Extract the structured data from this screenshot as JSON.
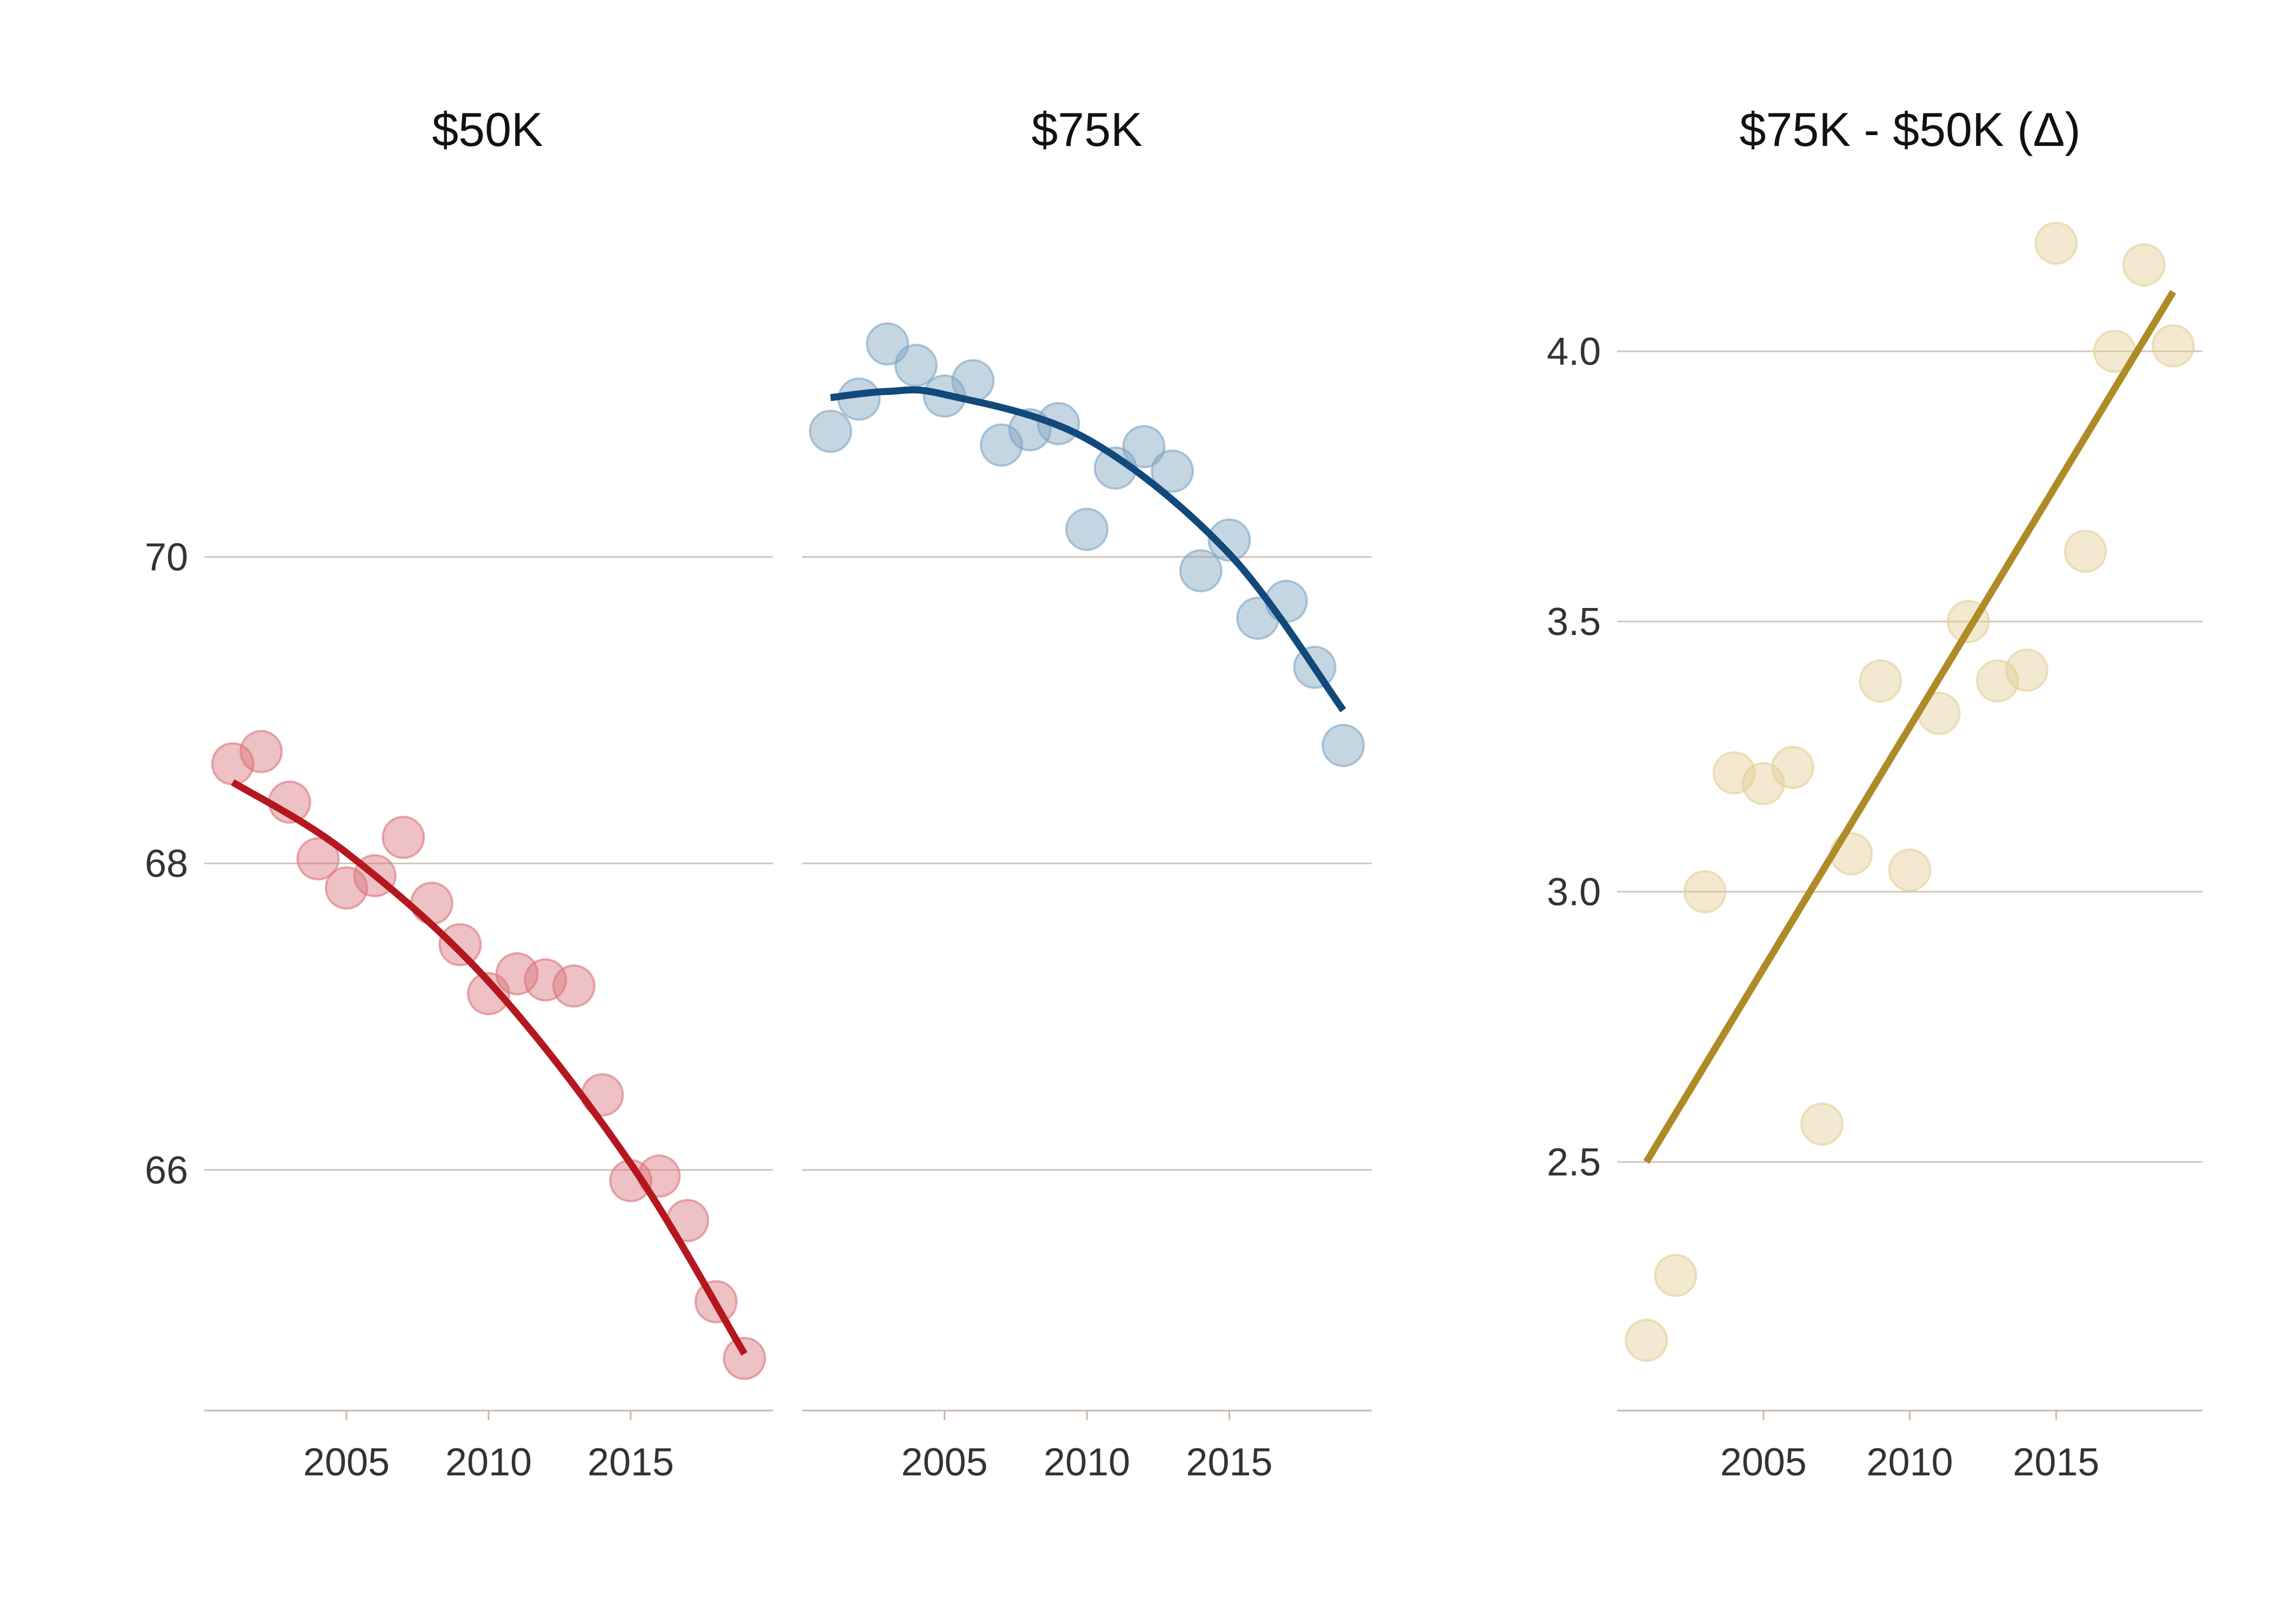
{
  "chart_data": [
    {
      "type": "scatter",
      "title": "$50K",
      "xlabel": "",
      "ylabel": "",
      "xlim": [
        2000,
        2020
      ],
      "ylim": [
        64.43,
        72.4
      ],
      "x_ticks": [
        2005,
        2010,
        2015
      ],
      "x_tick_labels": [
        "2005",
        "2010",
        "2015"
      ],
      "y_ticks": [
        66,
        68,
        70
      ],
      "y_tick_labels": [
        "66",
        "68",
        "70"
      ],
      "grid": true,
      "point_color": "#d9757c",
      "line_color": "#b5171f",
      "points": {
        "x": [
          2001,
          2002,
          2003,
          2004,
          2005,
          2006,
          2007,
          2008,
          2009,
          2010,
          2011,
          2012,
          2013,
          2014,
          2015,
          2016,
          2017,
          2018,
          2019
        ],
        "y": [
          68.65,
          68.73,
          68.4,
          68.03,
          67.84,
          67.92,
          68.17,
          67.74,
          67.47,
          67.15,
          67.28,
          67.24,
          67.2,
          66.49,
          65.93,
          65.96,
          65.67,
          65.14,
          64.77
        ]
      },
      "fit_line": {
        "x": [
          2001,
          2005,
          2010,
          2015,
          2019
        ],
        "y": [
          68.53,
          68.07,
          67.23,
          66.04,
          64.8
        ]
      }
    },
    {
      "type": "scatter",
      "title": "$75K",
      "xlabel": "",
      "ylabel": "",
      "xlim": [
        2000,
        2020
      ],
      "ylim": [
        64.43,
        72.4
      ],
      "x_ticks": [
        2005,
        2010,
        2015
      ],
      "x_tick_labels": [
        "2005",
        "2010",
        "2015"
      ],
      "y_ticks": [
        66,
        68,
        70
      ],
      "y_tick_labels": [
        "",
        "",
        ""
      ],
      "grid": true,
      "point_color": "#7fa4c2",
      "line_color": "#11497a",
      "points": {
        "x": [
          2001,
          2002,
          2003,
          2004,
          2005,
          2006,
          2007,
          2008,
          2009,
          2010,
          2011,
          2012,
          2013,
          2014,
          2015,
          2016,
          2017,
          2018,
          2019
        ],
        "y": [
          70.82,
          71.03,
          71.39,
          71.25,
          71.05,
          71.15,
          70.73,
          70.83,
          70.87,
          70.18,
          70.58,
          70.72,
          70.56,
          69.91,
          70.11,
          69.6,
          69.71,
          69.28,
          68.77
        ]
      },
      "fit_line": {
        "x": [
          2001,
          2003,
          2005,
          2010,
          2015,
          2019
        ],
        "y": [
          71.04,
          71.08,
          71.06,
          70.77,
          70.02,
          69.0
        ]
      }
    },
    {
      "type": "scatter",
      "title": "$75K - $50K (Δ)",
      "xlabel": "",
      "ylabel": "",
      "xlim": [
        2000,
        2020
      ],
      "ylim": [
        2.04,
        4.3
      ],
      "x_ticks": [
        2005,
        2010,
        2015
      ],
      "x_tick_labels": [
        "2005",
        "2010",
        "2015"
      ],
      "y_ticks": [
        2.5,
        3.0,
        3.5,
        4.0
      ],
      "y_tick_labels": [
        "2.5",
        "3.0",
        "3.5",
        "4.0"
      ],
      "grid": true,
      "point_color": "#e2ce96",
      "line_color": "#ae8b26",
      "points": {
        "x": [
          2001,
          2002,
          2003,
          2004,
          2005,
          2006,
          2007,
          2008,
          2009,
          2010,
          2011,
          2012,
          2013,
          2014,
          2015,
          2016,
          2017,
          2018,
          2019
        ],
        "y": [
          2.17,
          2.29,
          3.0,
          3.22,
          3.2,
          3.23,
          2.57,
          3.07,
          3.39,
          3.04,
          3.33,
          3.5,
          3.39,
          3.41,
          4.2,
          3.63,
          4.0,
          4.16,
          4.01
        ]
      },
      "fit_line": {
        "x": [
          2001,
          2019
        ],
        "y": [
          2.5,
          4.11
        ]
      }
    }
  ]
}
